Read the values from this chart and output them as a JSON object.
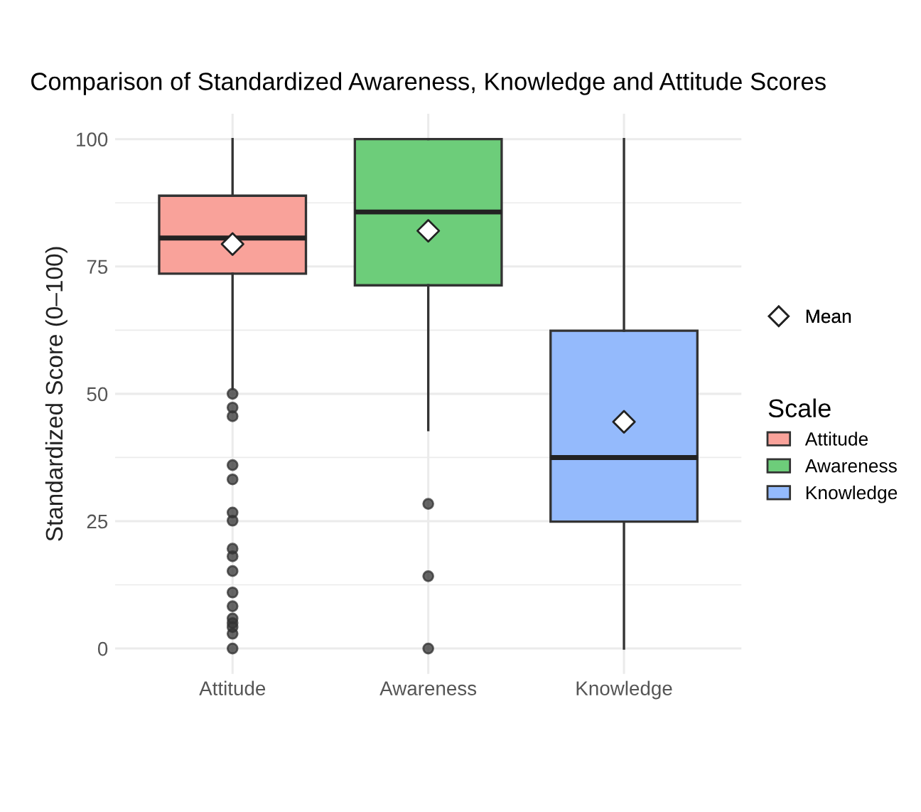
{
  "chart_data": {
    "type": "box",
    "title": "Comparison of Standardized Awareness, Knowledge and Attitude Scores",
    "ylabel": "Standardized Score (0–100)",
    "categories": [
      "Attitude",
      "Awareness",
      "Knowledge"
    ],
    "colors": [
      "#f9a29a",
      "#6dcd7a",
      "#94bafc"
    ],
    "boxes": [
      {
        "low": 51,
        "q1": 73.6,
        "median": 80.6,
        "q3": 88.9,
        "high": 100,
        "outliers": [
          50,
          47.3,
          45.6,
          36,
          33.2,
          26.7,
          25.1,
          19.6,
          18.1,
          15.2,
          11,
          8.3,
          5.9,
          5,
          4.2,
          2.9,
          0
        ]
      },
      {
        "low": 42.9,
        "q1": 71.3,
        "median": 85.7,
        "q3": 100,
        "high": 100,
        "outliers": [
          28.4,
          14.2,
          0
        ]
      },
      {
        "low": 0,
        "q1": 24.9,
        "median": 37.5,
        "q3": 62.4,
        "high": 100
      }
    ],
    "series": [
      {
        "name": "Mean",
        "type": "scatter",
        "marker": "diamond",
        "color": "#ffffff",
        "x": [
          "Attitude",
          "Awareness",
          "Knowledge"
        ],
        "values": [
          79.4,
          82,
          44.5
        ]
      }
    ],
    "legend_title": "Scale",
    "legend": "right",
    "grid": true,
    "ylim": [
      -5,
      105
    ],
    "yticks": [
      0,
      {
        "value": 12.5,
        "label": null
      },
      25,
      {
        "value": 37.5,
        "label": null
      },
      50,
      {
        "value": 62.5,
        "label": null
      },
      75,
      {
        "value": 87.5,
        "label": null
      },
      100
    ]
  }
}
